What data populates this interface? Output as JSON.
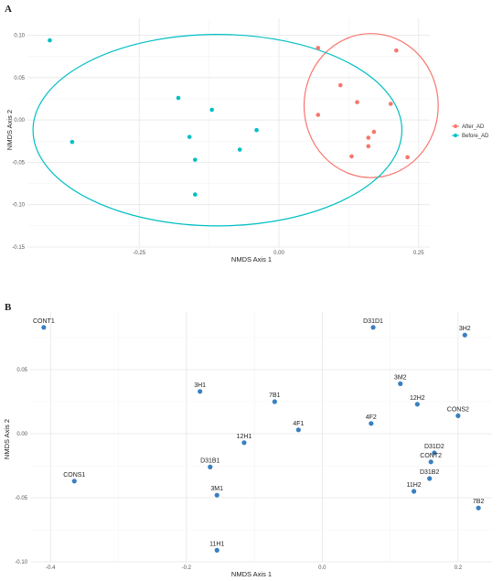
{
  "chart_data": [
    {
      "type": "scatter",
      "panel": "A",
      "xlabel": "NMDS Axis 1",
      "ylabel": "NMDS Axis 2",
      "xlim": [
        -0.45,
        0.27
      ],
      "ylim": [
        -0.15,
        0.12
      ],
      "xticks": [
        -0.25,
        0.0,
        0.25
      ],
      "xtick_labels": [
        "-0.25",
        "0.00",
        "0.25"
      ],
      "yticks": [
        -0.15,
        -0.1,
        -0.05,
        0.0,
        0.05,
        0.1
      ],
      "ytick_labels": [
        "-0.15",
        "-0.10",
        "-0.05",
        "0.00",
        "0.05",
        "0.10"
      ],
      "grid": true,
      "legend_position": "right",
      "series": [
        {
          "name": "After_AD",
          "color": "#f8766d",
          "points": [
            [
              0.21,
              0.082
            ],
            [
              0.07,
              0.085
            ],
            [
              0.11,
              0.041
            ],
            [
              0.2,
              0.019
            ],
            [
              0.07,
              0.006
            ],
            [
              0.14,
              0.021
            ],
            [
              0.17,
              -0.014
            ],
            [
              0.16,
              -0.021
            ],
            [
              0.16,
              -0.031
            ],
            [
              0.13,
              -0.043
            ],
            [
              0.23,
              -0.044
            ]
          ],
          "ellipse": {
            "cx": 0.165,
            "cy": 0.017,
            "rx": 0.12,
            "ry": 0.085
          }
        },
        {
          "name": "Before_AD",
          "color": "#00bfc4",
          "points": [
            [
              -0.41,
              0.094
            ],
            [
              -0.37,
              -0.026
            ],
            [
              -0.18,
              0.026
            ],
            [
              -0.12,
              0.012
            ],
            [
              -0.16,
              -0.02
            ],
            [
              -0.04,
              -0.012
            ],
            [
              -0.07,
              -0.035
            ],
            [
              -0.15,
              -0.047
            ],
            [
              -0.15,
              -0.088
            ]
          ],
          "ellipse": {
            "cx": -0.11,
            "cy": -0.012,
            "rx": 0.33,
            "ry": 0.113
          }
        }
      ]
    },
    {
      "type": "scatter",
      "panel": "B",
      "xlabel": "NMDS Axis 1",
      "ylabel": "NMDS Axis 2",
      "xlim": [
        -0.43,
        0.25
      ],
      "ylim": [
        -0.1,
        0.095
      ],
      "xticks": [
        -0.4,
        -0.2,
        0.0,
        0.2
      ],
      "xtick_labels": [
        "-0.4",
        "-0.2",
        "0.0",
        "0.2"
      ],
      "yticks": [
        -0.1,
        -0.05,
        0.0,
        0.05
      ],
      "ytick_labels": [
        "-0.10",
        "-0.05",
        "0.00",
        "0.05"
      ],
      "grid": true,
      "color": "#3a7fc1",
      "points": [
        {
          "label": "CONT1",
          "x": -0.41,
          "y": 0.083
        },
        {
          "label": "D31D1",
          "x": 0.075,
          "y": 0.083
        },
        {
          "label": "3H2",
          "x": 0.21,
          "y": 0.077
        },
        {
          "label": "3H1",
          "x": -0.18,
          "y": 0.033
        },
        {
          "label": "3M2",
          "x": 0.115,
          "y": 0.039
        },
        {
          "label": "12H2",
          "x": 0.14,
          "y": 0.023
        },
        {
          "label": "7B1",
          "x": -0.07,
          "y": 0.025
        },
        {
          "label": "CONS2",
          "x": 0.2,
          "y": 0.014
        },
        {
          "label": "4F2",
          "x": 0.072,
          "y": 0.008
        },
        {
          "label": "4F1",
          "x": -0.035,
          "y": 0.003
        },
        {
          "label": "12H1",
          "x": -0.115,
          "y": -0.007
        },
        {
          "label": "D31D2",
          "x": 0.165,
          "y": -0.015
        },
        {
          "label": "CONT2",
          "x": 0.16,
          "y": -0.022
        },
        {
          "label": "D31B1",
          "x": -0.165,
          "y": -0.026
        },
        {
          "label": "D31B2",
          "x": 0.158,
          "y": -0.035
        },
        {
          "label": "CONS1",
          "x": -0.365,
          "y": -0.037
        },
        {
          "label": "11H2",
          "x": 0.135,
          "y": -0.045
        },
        {
          "label": "3M1",
          "x": -0.155,
          "y": -0.048
        },
        {
          "label": "7B2",
          "x": 0.23,
          "y": -0.058
        },
        {
          "label": "11H1",
          "x": -0.155,
          "y": -0.091
        }
      ]
    }
  ]
}
